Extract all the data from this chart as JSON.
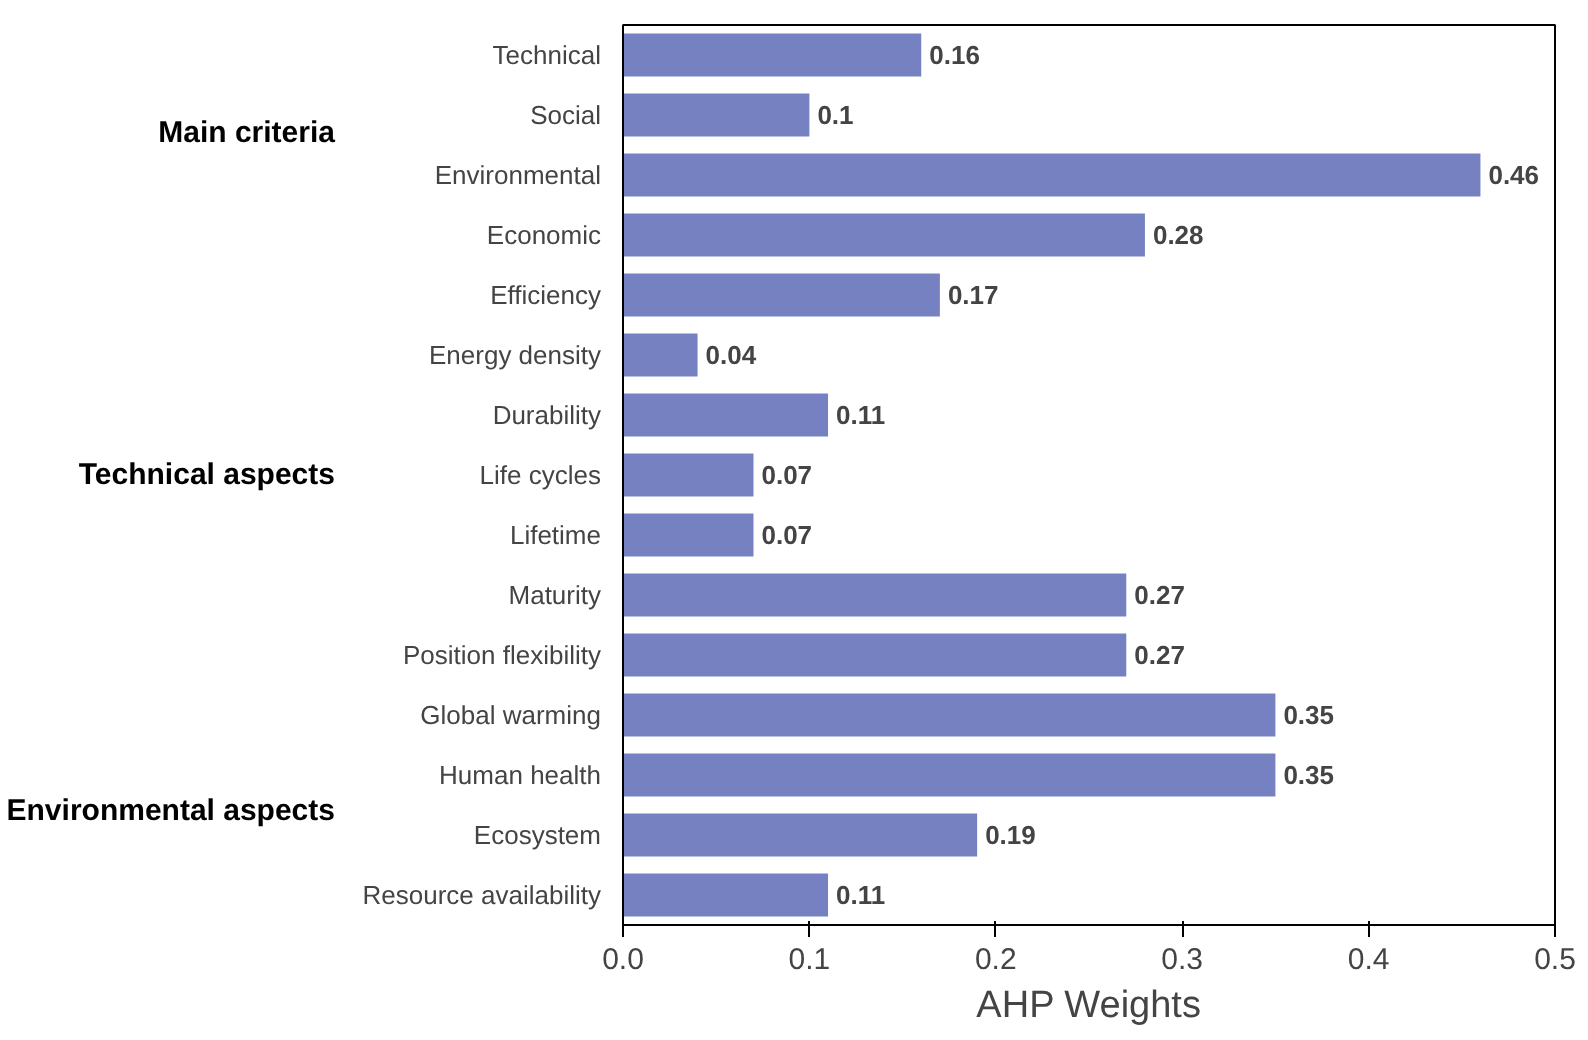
{
  "chart_data": {
    "type": "bar",
    "orientation": "horizontal",
    "xlabel": "AHP Weights",
    "categories": [
      "Technical",
      "Social",
      "Environmental",
      "Economic",
      "Efficiency",
      "Energy density",
      "Durability",
      "Life cycles",
      "Lifetime",
      "Maturity",
      "Position flexibility",
      "Global warming",
      "Human health",
      "Ecosystem",
      "Resource availability"
    ],
    "values": [
      0.16,
      0.1,
      0.46,
      0.28,
      0.17,
      0.04,
      0.11,
      0.07,
      0.07,
      0.27,
      0.27,
      0.35,
      0.35,
      0.19,
      0.11
    ],
    "color": "#7581c1",
    "data_labels": true,
    "xlim": [
      0,
      0.5
    ],
    "xticks": [
      {
        "value": 0,
        "label": "0.0"
      },
      0.1,
      0.2,
      0.3,
      0.4,
      0.5
    ],
    "grid": false,
    "annotations": [
      "Main criteria",
      "Technical aspects",
      "Environmental aspects"
    ]
  }
}
